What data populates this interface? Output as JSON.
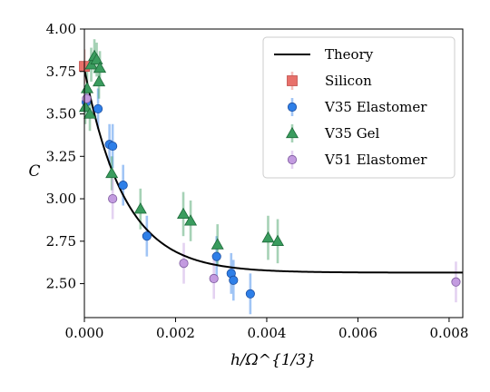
{
  "chart_data": {
    "type": "scatter",
    "xlabel": "h/Ω^{1/3}",
    "ylabel": "C",
    "xlim": [
      0,
      0.0083
    ],
    "ylim": [
      2.3,
      4.0
    ],
    "x_ticks": [
      0.0,
      0.002,
      0.004,
      0.006,
      0.008
    ],
    "x_tick_labels": [
      "0.000",
      "0.002",
      "0.004",
      "0.006",
      "0.008"
    ],
    "y_ticks": [
      2.5,
      2.75,
      3.0,
      3.25,
      3.5,
      3.75,
      4.0
    ],
    "y_tick_labels": [
      "2.50",
      "2.75",
      "3.00",
      "3.25",
      "3.50",
      "3.75",
      "4.00"
    ],
    "grid": false,
    "legend_position": "top-right",
    "theory": {
      "name": "Theory",
      "color": "#000000",
      "formula": "2.565 + 1.2 * exp(-x / 0.00088)"
    },
    "series": [
      {
        "name": "Silicon",
        "marker": "square",
        "color": "#e8706a",
        "edge": "#c0504d",
        "points": [
          {
            "x": 0.0,
            "y": 3.78,
            "err": 0.1
          }
        ]
      },
      {
        "name": "V35 Elastomer",
        "marker": "circle",
        "color": "#2e7fe8",
        "edge": "#1d4fa0",
        "points": [
          {
            "x": 4e-05,
            "y": 3.57,
            "err": 0.06
          },
          {
            "x": 0.0003,
            "y": 3.53,
            "err": 0.12
          },
          {
            "x": 0.00055,
            "y": 3.32,
            "err": 0.12
          },
          {
            "x": 0.00062,
            "y": 3.31,
            "err": 0.13
          },
          {
            "x": 0.00085,
            "y": 3.08,
            "err": 0.12
          },
          {
            "x": 0.00137,
            "y": 2.78,
            "err": 0.12
          },
          {
            "x": 0.0029,
            "y": 2.66,
            "err": 0.12
          },
          {
            "x": 0.00322,
            "y": 2.56,
            "err": 0.12
          },
          {
            "x": 0.00327,
            "y": 2.52,
            "err": 0.12
          },
          {
            "x": 0.00364,
            "y": 2.44,
            "err": 0.12
          }
        ]
      },
      {
        "name": "V35 Gel",
        "marker": "triangle",
        "color": "#3a9c5e",
        "edge": "#1d6a3a",
        "points": [
          {
            "x": 2e-05,
            "y": 3.54,
            "err": 0.1
          },
          {
            "x": 6e-05,
            "y": 3.65,
            "err": 0.1
          },
          {
            "x": 0.00012,
            "y": 3.5,
            "err": 0.1
          },
          {
            "x": 0.00015,
            "y": 3.79,
            "err": 0.1
          },
          {
            "x": 0.00022,
            "y": 3.84,
            "err": 0.1
          },
          {
            "x": 0.00027,
            "y": 3.82,
            "err": 0.1
          },
          {
            "x": 0.00032,
            "y": 3.69,
            "err": 0.1
          },
          {
            "x": 0.00034,
            "y": 3.77,
            "err": 0.1
          },
          {
            "x": 0.0006,
            "y": 3.15,
            "err": 0.1
          },
          {
            "x": 0.00123,
            "y": 2.94,
            "err": 0.12
          },
          {
            "x": 0.00217,
            "y": 2.91,
            "err": 0.13
          },
          {
            "x": 0.00233,
            "y": 2.87,
            "err": 0.12
          },
          {
            "x": 0.00292,
            "y": 2.73,
            "err": 0.12
          },
          {
            "x": 0.00403,
            "y": 2.77,
            "err": 0.13
          },
          {
            "x": 0.00424,
            "y": 2.75,
            "err": 0.13
          }
        ]
      },
      {
        "name": "V51 Elastomer",
        "marker": "circle",
        "color": "#c39be0",
        "edge": "#7d5a9e",
        "points": [
          {
            "x": 5e-05,
            "y": 3.59,
            "err": 0.07
          },
          {
            "x": 0.00062,
            "y": 3.0,
            "err": 0.12
          },
          {
            "x": 0.00218,
            "y": 2.62,
            "err": 0.12
          },
          {
            "x": 0.00284,
            "y": 2.53,
            "err": 0.12
          },
          {
            "x": 0.00815,
            "y": 2.51,
            "err": 0.12
          }
        ]
      }
    ]
  }
}
